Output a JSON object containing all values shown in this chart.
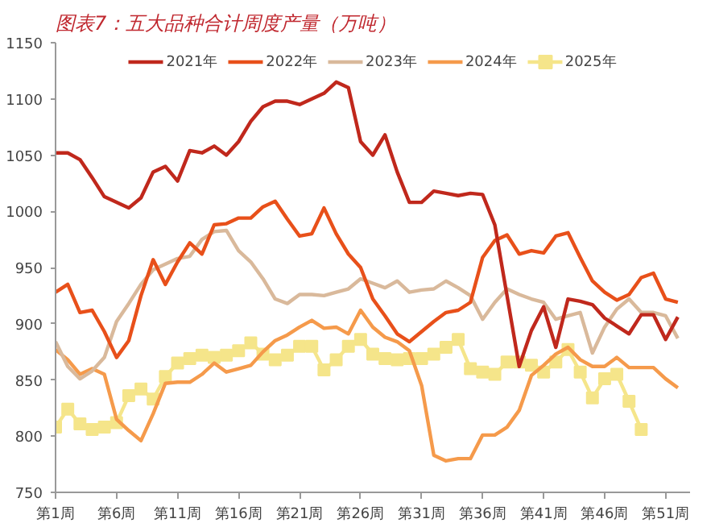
{
  "chart_data": {
    "type": "line",
    "title": "图表7：五大品种合计周度产量（万吨）",
    "categories": [
      "第1周",
      null,
      null,
      null,
      null,
      "第6周",
      null,
      null,
      null,
      null,
      "第11周",
      null,
      null,
      null,
      null,
      "第16周",
      null,
      null,
      null,
      null,
      "第21周",
      null,
      null,
      null,
      null,
      "第26周",
      null,
      null,
      null,
      null,
      "第31周",
      null,
      null,
      null,
      null,
      "第36周",
      null,
      null,
      null,
      null,
      "第41周",
      null,
      null,
      null,
      null,
      "第46周",
      null,
      null,
      null,
      null,
      "第51周",
      null
    ],
    "ylim": [
      750,
      1150
    ],
    "yticks": [
      750,
      800,
      850,
      900,
      950,
      1000,
      1050,
      1100,
      1150
    ],
    "grid": false,
    "legend": "top",
    "series": [
      {
        "name": "2021年",
        "color": "#c0281c",
        "marker": "none",
        "values": [
          1052,
          1052,
          1046,
          1030,
          1013,
          1008,
          1003,
          1012,
          1035,
          1040,
          1027,
          1054,
          1052,
          1058,
          1050,
          1062,
          1080,
          1093,
          1098,
          1098,
          1095,
          1100,
          1105,
          1115,
          1110,
          1062,
          1050,
          1068,
          1035,
          1008,
          1008,
          1018,
          1016,
          1014,
          1016,
          1015,
          988,
          925,
          862,
          894,
          915,
          879,
          922,
          920,
          917,
          905,
          898,
          891,
          908,
          908,
          886,
          906
        ]
      },
      {
        "name": "2022年",
        "color": "#e8501a",
        "marker": "none",
        "values": [
          928,
          935,
          910,
          912,
          893,
          870,
          885,
          925,
          957,
          935,
          955,
          972,
          962,
          988,
          989,
          994,
          994,
          1004,
          1009,
          993,
          978,
          980,
          1003,
          980,
          962,
          950,
          922,
          907,
          891,
          884,
          893,
          902,
          910,
          912,
          919,
          959,
          974,
          979,
          962,
          965,
          963,
          978,
          981,
          959,
          938,
          928,
          921,
          926,
          941,
          945,
          922,
          919
        ]
      },
      {
        "name": "2023年",
        "color": "#d9b99b",
        "marker": "none",
        "values": [
          884,
          862,
          851,
          858,
          870,
          902,
          918,
          935,
          948,
          953,
          958,
          960,
          975,
          982,
          983,
          965,
          955,
          940,
          922,
          918,
          926,
          926,
          925,
          928,
          931,
          940,
          936,
          932,
          938,
          928,
          930,
          931,
          938,
          932,
          925,
          904,
          919,
          931,
          926,
          922,
          919,
          904,
          907,
          910,
          874,
          897,
          913,
          922,
          910,
          910,
          907,
          887
        ]
      },
      {
        "name": "2024年",
        "color": "#f59a4b",
        "marker": "none",
        "values": [
          877,
          868,
          855,
          860,
          855,
          815,
          805,
          796,
          820,
          847,
          848,
          848,
          855,
          865,
          857,
          860,
          863,
          875,
          885,
          890,
          897,
          903,
          896,
          897,
          891,
          912,
          897,
          888,
          884,
          876,
          845,
          783,
          778,
          780,
          780,
          801,
          801,
          808,
          823,
          854,
          863,
          873,
          879,
          868,
          862,
          862,
          870,
          861,
          861,
          861,
          851,
          843
        ]
      },
      {
        "name": "2025年",
        "color": "#f5e58a",
        "marker": "square",
        "values": [
          808,
          824,
          811,
          806,
          808,
          812,
          836,
          842,
          833,
          853,
          865,
          869,
          872,
          870,
          872,
          876,
          883,
          873,
          868,
          872,
          880,
          880,
          859,
          868,
          880,
          886,
          873,
          869,
          868,
          869,
          869,
          873,
          879,
          886,
          860,
          857,
          855,
          866,
          866,
          863,
          857,
          866,
          877,
          857,
          834,
          851,
          855,
          831,
          806,
          null,
          null,
          null
        ]
      }
    ]
  }
}
